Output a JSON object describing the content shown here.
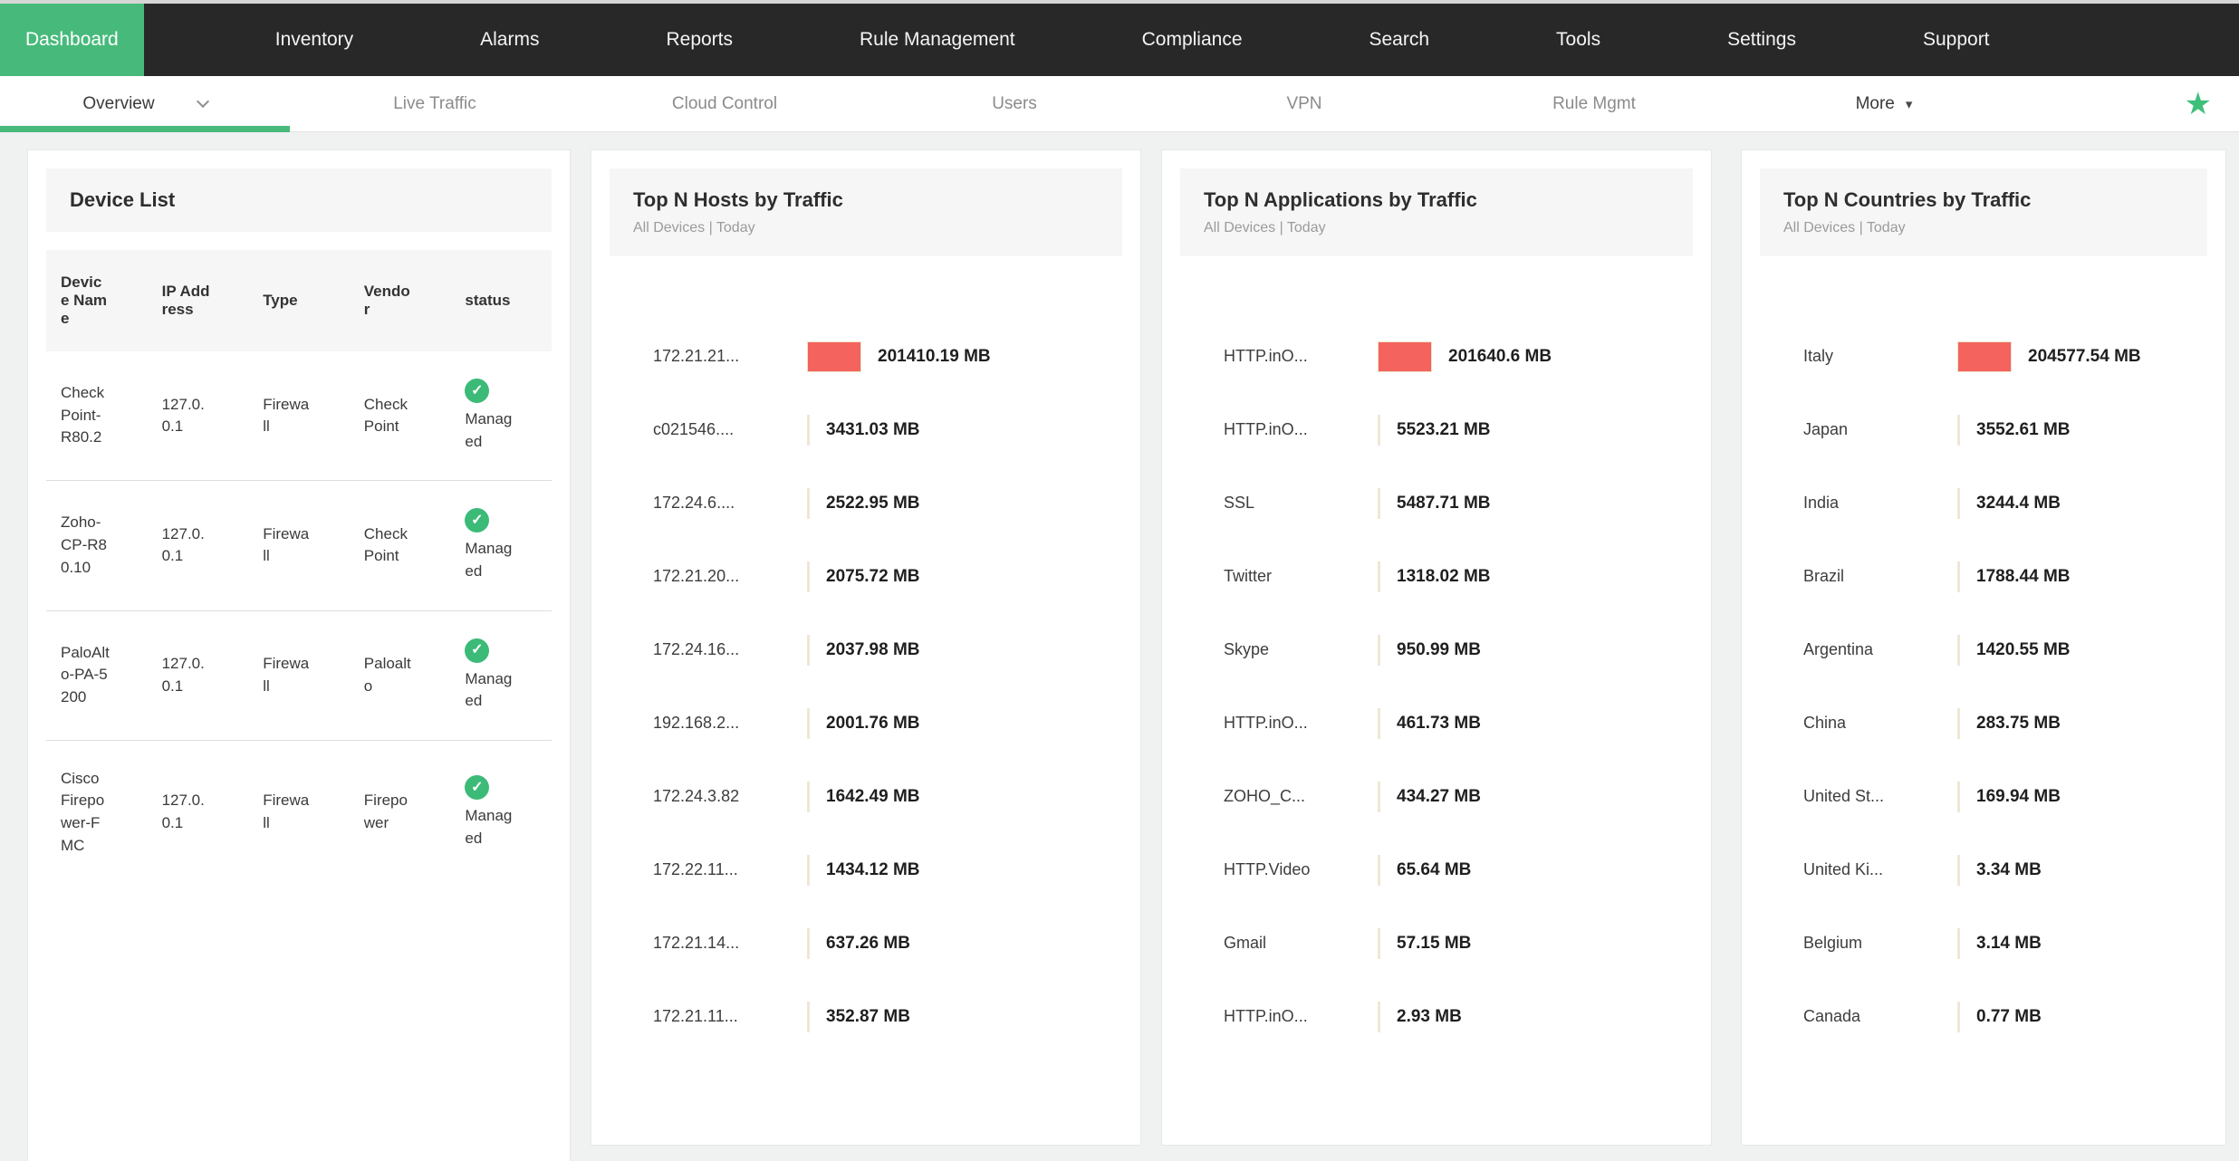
{
  "accent_green": "#47ba7b",
  "bar_red": "#f4635e",
  "topnav": {
    "items": [
      {
        "label": "Dashboard",
        "active": true
      },
      {
        "label": "Inventory"
      },
      {
        "label": "Alarms"
      },
      {
        "label": "Reports"
      },
      {
        "label": "Rule Management"
      },
      {
        "label": "Compliance"
      },
      {
        "label": "Search"
      },
      {
        "label": "Tools"
      },
      {
        "label": "Settings"
      },
      {
        "label": "Support"
      }
    ]
  },
  "subnav": {
    "items": [
      {
        "label": "Overview",
        "active": true,
        "chevron": true
      },
      {
        "label": "Live Traffic"
      },
      {
        "label": "Cloud Control"
      },
      {
        "label": "Users"
      },
      {
        "label": "VPN"
      },
      {
        "label": "Rule Mgmt"
      },
      {
        "label": "More",
        "dark": true,
        "caret": true
      }
    ],
    "star_icon": "★"
  },
  "panels": {
    "device_list": {
      "title": "Device List",
      "columns": [
        "Device Name",
        "IP Address",
        "Type",
        "Vendor",
        "status"
      ],
      "rows": [
        {
          "name": "CheckPoint-R80.2",
          "ip": "127.0.0.1",
          "type": "Firewall",
          "vendor": "Check Point",
          "status": "Managed"
        },
        {
          "name": "Zoho-CP-R80.10",
          "ip": "127.0.0.1",
          "type": "Firewall",
          "vendor": "Check Point",
          "status": "Managed"
        },
        {
          "name": "PaloAlto-PA-5200",
          "ip": "127.0.0.1",
          "type": "Firewall",
          "vendor": "Paloalto",
          "status": "Managed"
        },
        {
          "name": "Cisco Firepower-FMC",
          "ip": "127.0.0.1",
          "type": "Firewall",
          "vendor": "Firepower",
          "status": "Managed"
        }
      ]
    },
    "hosts": {
      "title": "Top N Hosts by Traffic",
      "subtitle": "All Devices | Today",
      "rows": [
        {
          "label": "172.21.21...",
          "value": "201410.19 MB",
          "mb": 201410.19
        },
        {
          "label": "c021546....",
          "value": "3431.03 MB",
          "mb": 3431.03
        },
        {
          "label": "172.24.6....",
          "value": "2522.95 MB",
          "mb": 2522.95
        },
        {
          "label": "172.21.20...",
          "value": "2075.72 MB",
          "mb": 2075.72
        },
        {
          "label": "172.24.16...",
          "value": "2037.98 MB",
          "mb": 2037.98
        },
        {
          "label": "192.168.2...",
          "value": "2001.76 MB",
          "mb": 2001.76
        },
        {
          "label": "172.24.3.82",
          "value": "1642.49 MB",
          "mb": 1642.49
        },
        {
          "label": "172.22.11...",
          "value": "1434.12 MB",
          "mb": 1434.12
        },
        {
          "label": "172.21.14...",
          "value": "637.26 MB",
          "mb": 637.26
        },
        {
          "label": "172.21.11...",
          "value": "352.87 MB",
          "mb": 352.87
        }
      ]
    },
    "apps": {
      "title": "Top N Applications by Traffic",
      "subtitle": "All Devices | Today",
      "rows": [
        {
          "label": "HTTP.inO...",
          "value": "201640.6 MB",
          "mb": 201640.6
        },
        {
          "label": "HTTP.inO...",
          "value": "5523.21 MB",
          "mb": 5523.21
        },
        {
          "label": "SSL",
          "value": "5487.71 MB",
          "mb": 5487.71
        },
        {
          "label": "Twitter",
          "value": "1318.02 MB",
          "mb": 1318.02
        },
        {
          "label": "Skype",
          "value": "950.99 MB",
          "mb": 950.99
        },
        {
          "label": "HTTP.inO...",
          "value": "461.73 MB",
          "mb": 461.73
        },
        {
          "label": "ZOHO_C...",
          "value": "434.27 MB",
          "mb": 434.27
        },
        {
          "label": "HTTP.Video",
          "value": "65.64 MB",
          "mb": 65.64
        },
        {
          "label": "Gmail",
          "value": "57.15 MB",
          "mb": 57.15
        },
        {
          "label": "HTTP.inO...",
          "value": "2.93 MB",
          "mb": 2.93
        }
      ]
    },
    "countries": {
      "title": "Top N Countries by Traffic",
      "subtitle": "All Devices | Today",
      "rows": [
        {
          "label": "Italy",
          "value": "204577.54 MB",
          "mb": 204577.54
        },
        {
          "label": "Japan",
          "value": "3552.61 MB",
          "mb": 3552.61
        },
        {
          "label": "India",
          "value": "3244.4 MB",
          "mb": 3244.4
        },
        {
          "label": "Brazil",
          "value": "1788.44 MB",
          "mb": 1788.44
        },
        {
          "label": "Argentina",
          "value": "1420.55 MB",
          "mb": 1420.55
        },
        {
          "label": "China",
          "value": "283.75 MB",
          "mb": 283.75
        },
        {
          "label": "United St...",
          "value": "169.94 MB",
          "mb": 169.94
        },
        {
          "label": "United Ki...",
          "value": "3.34 MB",
          "mb": 3.34
        },
        {
          "label": "Belgium",
          "value": "3.14 MB",
          "mb": 3.14
        },
        {
          "label": "Canada",
          "value": "0.77 MB",
          "mb": 0.77
        }
      ]
    }
  },
  "chart_data": [
    {
      "type": "bar",
      "title": "Top N Hosts by Traffic",
      "subtitle": "All Devices | Today",
      "orientation": "horizontal",
      "unit": "MB",
      "bar_color": "#f4635e",
      "categories": [
        "172.21.21...",
        "c021546....",
        "172.24.6....",
        "172.21.20...",
        "172.24.16...",
        "192.168.2...",
        "172.24.3.82",
        "172.22.11...",
        "172.21.14...",
        "172.21.11..."
      ],
      "values": [
        201410.19,
        3431.03,
        2522.95,
        2075.72,
        2037.98,
        2001.76,
        1642.49,
        1434.12,
        637.26,
        352.87
      ]
    },
    {
      "type": "bar",
      "title": "Top N Applications by Traffic",
      "subtitle": "All Devices | Today",
      "orientation": "horizontal",
      "unit": "MB",
      "bar_color": "#f4635e",
      "categories": [
        "HTTP.inO...",
        "HTTP.inO...",
        "SSL",
        "Twitter",
        "Skype",
        "HTTP.inO...",
        "ZOHO_C...",
        "HTTP.Video",
        "Gmail",
        "HTTP.inO..."
      ],
      "values": [
        201640.6,
        5523.21,
        5487.71,
        1318.02,
        950.99,
        461.73,
        434.27,
        65.64,
        57.15,
        2.93
      ]
    },
    {
      "type": "bar",
      "title": "Top N Countries by Traffic",
      "subtitle": "All Devices | Today",
      "orientation": "horizontal",
      "unit": "MB",
      "bar_color": "#f4635e",
      "categories": [
        "Italy",
        "Japan",
        "India",
        "Brazil",
        "Argentina",
        "China",
        "United St...",
        "United Ki...",
        "Belgium",
        "Canada"
      ],
      "values": [
        204577.54,
        3552.61,
        3244.4,
        1788.44,
        1420.55,
        283.75,
        169.94,
        3.34,
        3.14,
        0.77
      ]
    }
  ]
}
